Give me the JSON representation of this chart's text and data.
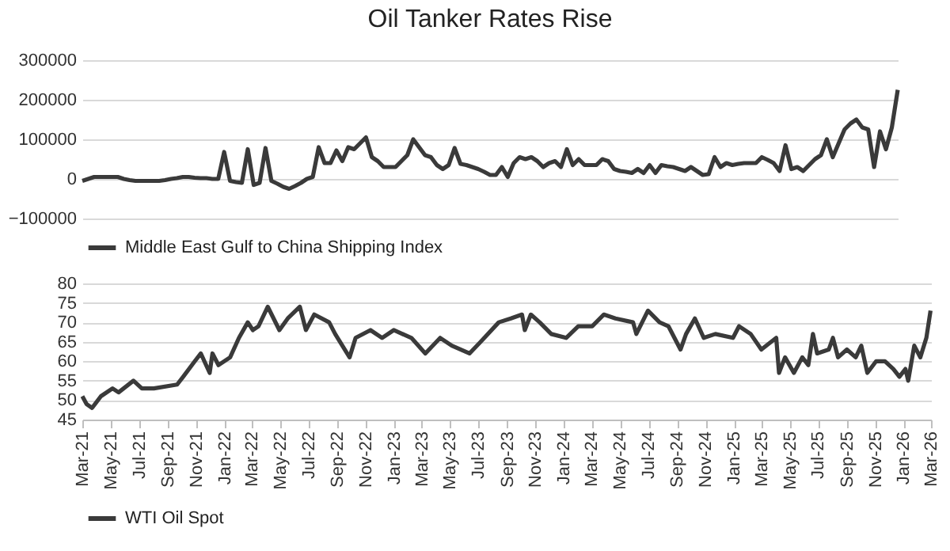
{
  "chart_data": [
    {
      "type": "line",
      "title": "Oil Tanker Rates Rise",
      "ylim": [
        -100000,
        300000
      ],
      "yticks": [
        -100000,
        0,
        100000,
        200000,
        300000
      ],
      "grid": "y",
      "legend": "bottom",
      "tick_labels": "y",
      "categories": [
        null,
        null,
        null,
        null,
        null,
        null,
        null,
        null,
        null,
        null,
        null,
        null,
        null,
        null,
        null,
        null,
        null,
        null,
        null,
        null,
        null,
        null,
        null,
        null,
        null,
        null,
        null,
        null,
        null,
        null,
        null,
        null,
        null,
        null,
        null,
        null,
        null,
        null,
        null,
        null,
        null,
        null,
        null,
        null,
        null,
        null,
        null,
        null,
        null,
        null,
        null,
        null,
        null,
        null,
        null,
        null,
        null,
        null,
        null,
        null,
        null,
        null,
        null,
        null,
        null,
        null,
        null,
        null,
        null,
        null,
        null,
        null,
        null,
        null,
        null,
        null,
        null,
        null,
        null,
        null,
        null,
        null,
        null,
        null,
        null,
        null,
        null,
        null,
        null,
        null,
        null,
        null,
        null,
        null,
        null,
        null,
        null,
        null,
        null,
        null,
        null,
        null,
        null,
        null,
        null,
        null,
        null,
        null,
        null,
        null,
        null,
        null,
        null,
        null,
        null,
        null,
        null,
        null,
        null,
        null,
        null,
        null,
        null,
        null,
        null,
        null,
        null,
        null,
        null,
        null,
        null,
        null,
        null,
        null,
        null,
        null,
        null,
        null,
        null
      ],
      "series": [
        {
          "name": "Middle East Gulf to China Shipping Index",
          "color": "#3a3a3a",
          "values": [
            -5000,
            0,
            5000,
            5000,
            5000,
            5000,
            5000,
            0,
            -3000,
            -5000,
            -5000,
            -5000,
            -5000,
            -5000,
            -3000,
            0,
            2000,
            5000,
            5000,
            3000,
            2000,
            2000,
            0,
            0,
            68000,
            -5000,
            -8000,
            -10000,
            75000,
            -15000,
            -10000,
            78000,
            -5000,
            -12000,
            -20000,
            -25000,
            -18000,
            -10000,
            0,
            5000,
            80000,
            40000,
            40000,
            72000,
            45000,
            80000,
            75000,
            90000,
            105000,
            55000,
            45000,
            30000,
            30000,
            30000,
            45000,
            60000,
            100000,
            80000,
            60000,
            55000,
            35000,
            25000,
            35000,
            78000,
            38000,
            35000,
            30000,
            25000,
            18000,
            10000,
            10000,
            30000,
            5000,
            40000,
            55000,
            50000,
            55000,
            45000,
            30000,
            40000,
            45000,
            30000,
            75000,
            35000,
            50000,
            35000,
            35000,
            35000,
            50000,
            45000,
            25000,
            20000,
            18000,
            15000,
            25000,
            15000,
            35000,
            15000,
            35000,
            32000,
            30000,
            25000,
            20000,
            30000,
            20000,
            10000,
            12000,
            55000,
            30000,
            40000,
            35000,
            38000,
            40000,
            40000,
            40000,
            55000,
            48000,
            40000,
            20000,
            85000,
            25000,
            30000,
            20000,
            35000,
            50000,
            60000,
            100000,
            55000,
            90000,
            125000,
            140000,
            150000,
            130000,
            125000,
            30000,
            120000,
            75000,
            130000,
            225000
          ]
        }
      ]
    },
    {
      "type": "line",
      "xlim": [
        "2021-03-01",
        "2026-03-01"
      ],
      "ylim": [
        45,
        80
      ],
      "yticks": [
        45,
        50,
        55,
        60,
        65,
        70,
        75,
        80
      ],
      "grid": "y",
      "legend": "bottom",
      "xticks": [
        {
          "value": "2021-03",
          "label": "Mar-21"
        },
        {
          "value": "2021-05",
          "label": "May-21"
        },
        {
          "value": "2021-07",
          "label": "Jul-21"
        },
        {
          "value": "2021-09",
          "label": "Sep-21"
        },
        {
          "value": "2021-11",
          "label": "Nov-21"
        },
        {
          "value": "2022-01",
          "label": "Jan-22"
        },
        {
          "value": "2022-03",
          "label": "Mar-22"
        },
        {
          "value": "2022-05",
          "label": "May-22"
        },
        {
          "value": "2022-07",
          "label": "Jul-22"
        },
        {
          "value": "2022-09",
          "label": "Sep-22"
        },
        {
          "value": "2022-11",
          "label": "Nov-22"
        },
        {
          "value": "2023-01",
          "label": "Jan-23"
        },
        {
          "value": "2023-03",
          "label": "Mar-23"
        },
        {
          "value": "2023-05",
          "label": "May-23"
        },
        {
          "value": "2023-07",
          "label": "Jul-23"
        },
        {
          "value": "2023-09",
          "label": "Sep-23"
        },
        {
          "value": "2023-11",
          "label": "Nov-23"
        },
        {
          "value": "2024-01",
          "label": "Jan-24"
        },
        {
          "value": "2024-03",
          "label": "Mar-24"
        },
        {
          "value": "2024-05",
          "label": "May-24"
        },
        {
          "value": "2024-07",
          "label": "Jul-24"
        },
        {
          "value": "2024-09",
          "label": "Sep-24"
        },
        {
          "value": "2024-11",
          "label": "Nov-24"
        },
        {
          "value": "2025-01",
          "label": "Jan-25"
        },
        {
          "value": "2025-03",
          "label": "Mar-25"
        },
        {
          "value": "2025-05",
          "label": "May-25"
        },
        {
          "value": "2025-07",
          "label": "Jul-25"
        },
        {
          "value": "2025-09",
          "label": "Sep-25"
        },
        {
          "value": "2025-11",
          "label": "Nov-25"
        },
        {
          "value": "2026-01",
          "label": "Jan-26"
        },
        {
          "value": "2026-03",
          "label": "Mar-26"
        }
      ],
      "series": [
        {
          "name": "WTI Oil Spot",
          "color": "#3a3a3a",
          "x": [
            "2021-03-01",
            "2021-03-10",
            "2021-03-22",
            "2021-04-10",
            "2021-05-05",
            "2021-05-18",
            "2021-06-19",
            "2021-07-07",
            "2021-08-02",
            "2021-09-21",
            "2021-10-04",
            "2021-10-29",
            "2021-11-11",
            "2021-11-30",
            "2021-12-06",
            "2021-12-19",
            "2022-01-13",
            "2022-02-01",
            "2022-02-20",
            "2022-03-03",
            "2022-03-15",
            "2022-04-04",
            "2022-04-29",
            "2022-05-17",
            "2022-06-12",
            "2022-06-25",
            "2022-07-13",
            "2022-08-14",
            "2022-08-27",
            "2022-09-27",
            "2022-10-10",
            "2022-11-11",
            "2022-12-06",
            "2022-12-31",
            "2023-02-07",
            "2023-03-09",
            "2023-04-10",
            "2023-05-05",
            "2023-06-12",
            "2023-07-06",
            "2023-08-14",
            "2023-09-09",
            "2023-10-03",
            "2023-10-09",
            "2023-10-22",
            "2023-11-10",
            "2023-12-05",
            "2024-01-06",
            "2024-02-01",
            "2024-03-02",
            "2024-03-27",
            "2024-04-21",
            "2024-05-29",
            "2024-06-05",
            "2024-06-30",
            "2024-07-25",
            "2024-08-13",
            "2024-09-08",
            "2024-09-20",
            "2024-10-09",
            "2024-10-28",
            "2024-11-22",
            "2024-12-30",
            "2025-01-12",
            "2025-02-06",
            "2025-03-01",
            "2025-04-02",
            "2025-04-08",
            "2025-04-21",
            "2025-05-10",
            "2025-05-28",
            "2025-06-10",
            "2025-06-20",
            "2025-06-29",
            "2025-07-24",
            "2025-08-02",
            "2025-08-13",
            "2025-09-01",
            "2025-09-20",
            "2025-10-02",
            "2025-10-15",
            "2025-11-03",
            "2025-11-22",
            "2025-12-10",
            "2025-12-23",
            "2026-01-05",
            "2026-01-11",
            "2026-01-24",
            "2026-02-06",
            "2026-02-19",
            "2026-02-28"
          ],
          "values": [
            51,
            49,
            48,
            51,
            53,
            52,
            55,
            53,
            53,
            54,
            56,
            60,
            62,
            57,
            62,
            59,
            61,
            66,
            70,
            68,
            69,
            74,
            68,
            71,
            74,
            68,
            72,
            70,
            67,
            61,
            66,
            68,
            66,
            68,
            66,
            62,
            66,
            64,
            62,
            65,
            70,
            71,
            72,
            68,
            72,
            70,
            67,
            66,
            69,
            69,
            72,
            71,
            70,
            67,
            73,
            70,
            69,
            63,
            67,
            71,
            66,
            67,
            66,
            69,
            67,
            63,
            66,
            57,
            61,
            57,
            61,
            59,
            67,
            62,
            63,
            66,
            61,
            63,
            61,
            64,
            57,
            60,
            60,
            58,
            56,
            58,
            55,
            64,
            61,
            66,
            73
          ]
        }
      ]
    }
  ]
}
